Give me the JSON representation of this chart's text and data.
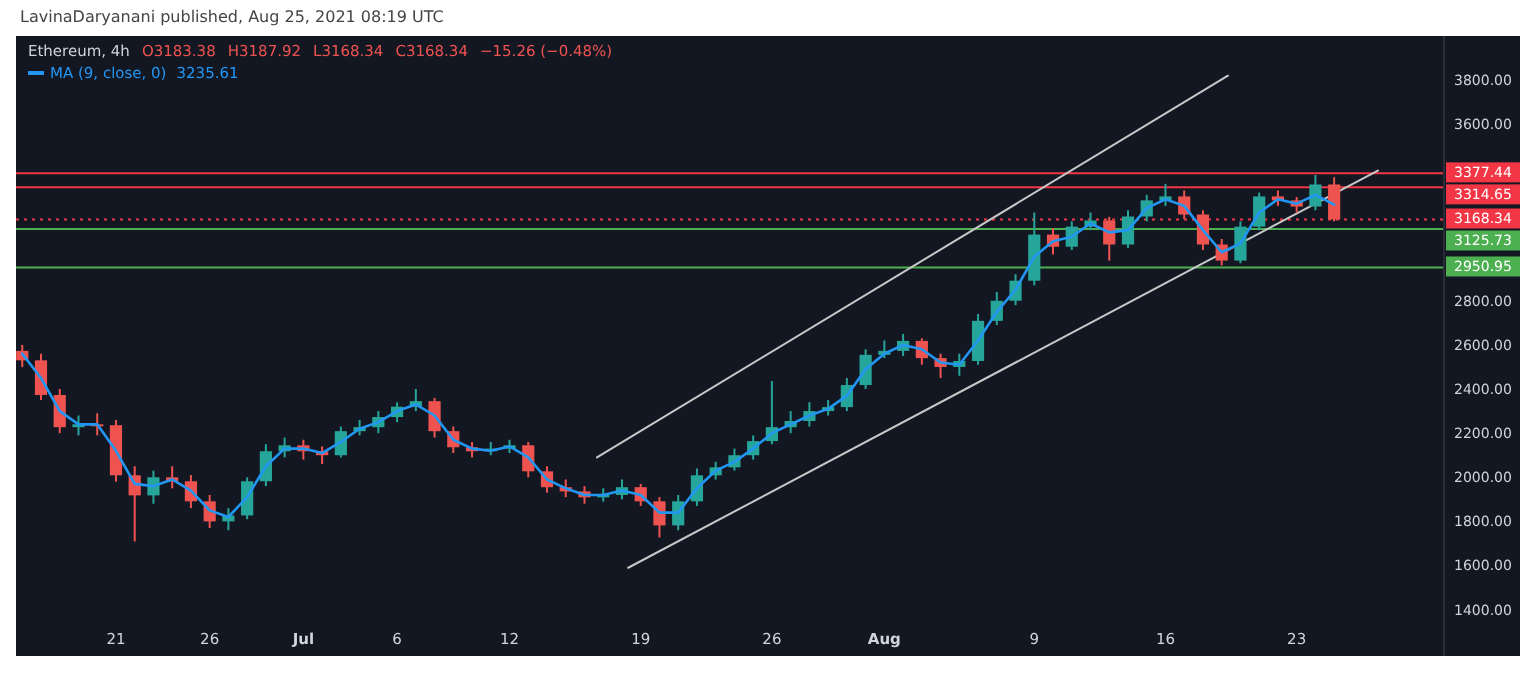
{
  "chart_data": {
    "type": "candlestick",
    "title": "Ethereum, 4h",
    "subtitle": "LavinaDaryanani published, Aug 25, 2021 08:19 UTC",
    "annotations": [
      "O3183.38",
      "H3187.92",
      "L3168.34",
      "C3168.34",
      "−15.26 (−0.48%)",
      "3235.61"
    ],
    "legend": "top left",
    "grid": false,
    "xlim": [
      "2021-06-15T16:00",
      "2021-09-03T22:00"
    ],
    "xticks": [
      {
        "value": "2021-06-21",
        "label": "21"
      },
      {
        "value": "2021-06-26",
        "label": "26"
      },
      {
        "value": "2021-07-01",
        "label": "Jul"
      },
      {
        "value": "2021-07-06",
        "label": "6"
      },
      {
        "value": "2021-07-12",
        "label": "12"
      },
      {
        "value": "2021-07-19",
        "label": "19"
      },
      {
        "value": "2021-07-26",
        "label": "26"
      },
      {
        "value": "2021-08-01",
        "label": "Aug"
      },
      {
        "value": "2021-08-09",
        "label": "9"
      },
      {
        "value": "2021-08-16",
        "label": "16"
      },
      {
        "value": "2021-08-23",
        "label": "23"
      }
    ],
    "ylim": [
      1190,
      4000
    ],
    "yticks": [
      {
        "value": 1400,
        "label": "1400.00"
      },
      {
        "value": 1600,
        "label": "1600.00"
      },
      {
        "value": 1800,
        "label": "1800.00"
      },
      {
        "value": 2000,
        "label": "2000.00"
      },
      {
        "value": 2200,
        "label": "2200.00"
      },
      {
        "value": 2400,
        "label": "2400.00"
      },
      {
        "value": 2600,
        "label": "2600.00"
      },
      {
        "value": 2800,
        "label": "2800.00"
      },
      {
        "value": 3600,
        "label": "3600.00"
      },
      {
        "value": 3800,
        "label": "3800.00"
      }
    ],
    "ref_lines": [
      {
        "axis": "y",
        "value": 3377.44,
        "label": "3377.44",
        "color": "#f23645"
      },
      {
        "axis": "y",
        "value": 3314.65,
        "label": "3314.65",
        "color": "#f23645"
      },
      {
        "axis": "y",
        "value": 3168.34,
        "label": "3168.34",
        "color": "#f23645",
        "line_style": "dotted"
      },
      {
        "axis": "y",
        "value": 3125.73,
        "label": "3125.73",
        "color": "#4caf50"
      },
      {
        "axis": "y",
        "value": 2950.95,
        "label": "2950.95",
        "color": "#4caf50"
      }
    ],
    "x": [
      "2021-06-16",
      "2021-06-17",
      "2021-06-18",
      "2021-06-19",
      "2021-06-20",
      "2021-06-21",
      "2021-06-22",
      "2021-06-23",
      "2021-06-24",
      "2021-06-25",
      "2021-06-26",
      "2021-06-27",
      "2021-06-28",
      "2021-06-29",
      "2021-06-30",
      "2021-07-01",
      "2021-07-02",
      "2021-07-03",
      "2021-07-04",
      "2021-07-05",
      "2021-07-06",
      "2021-07-07",
      "2021-07-08",
      "2021-07-09",
      "2021-07-10",
      "2021-07-11",
      "2021-07-12",
      "2021-07-13",
      "2021-07-14",
      "2021-07-15",
      "2021-07-16",
      "2021-07-17",
      "2021-07-18",
      "2021-07-19",
      "2021-07-20",
      "2021-07-21",
      "2021-07-22",
      "2021-07-23",
      "2021-07-24",
      "2021-07-25",
      "2021-07-26",
      "2021-07-27",
      "2021-07-28",
      "2021-07-29",
      "2021-07-30",
      "2021-07-31",
      "2021-08-01",
      "2021-08-02",
      "2021-08-03",
      "2021-08-04",
      "2021-08-05",
      "2021-08-06",
      "2021-08-07",
      "2021-08-08",
      "2021-08-09",
      "2021-08-10",
      "2021-08-11",
      "2021-08-12",
      "2021-08-13",
      "2021-08-14",
      "2021-08-15",
      "2021-08-16",
      "2021-08-17",
      "2021-08-18",
      "2021-08-19",
      "2021-08-20",
      "2021-08-21",
      "2021-08-22",
      "2021-08-23",
      "2021-08-24",
      "2021-08-25"
    ],
    "ohlc": [
      [
        2573,
        2600,
        2500,
        2530
      ],
      [
        2530,
        2560,
        2350,
        2373
      ],
      [
        2373,
        2400,
        2200,
        2227
      ],
      [
        2227,
        2280,
        2190,
        2240
      ],
      [
        2240,
        2290,
        2190,
        2236
      ],
      [
        2236,
        2260,
        1980,
        2009
      ],
      [
        2009,
        2050,
        1709,
        1918
      ],
      [
        1918,
        2030,
        1880,
        2000
      ],
      [
        2000,
        2050,
        1950,
        1982
      ],
      [
        1982,
        2010,
        1860,
        1891
      ],
      [
        1891,
        1920,
        1770,
        1800
      ],
      [
        1800,
        1860,
        1760,
        1827
      ],
      [
        1827,
        2000,
        1810,
        1982
      ],
      [
        1982,
        2150,
        1960,
        2118
      ],
      [
        2118,
        2180,
        2090,
        2145
      ],
      [
        2145,
        2170,
        2080,
        2118
      ],
      [
        2118,
        2140,
        2060,
        2100
      ],
      [
        2100,
        2230,
        2090,
        2209
      ],
      [
        2209,
        2260,
        2190,
        2227
      ],
      [
        2227,
        2300,
        2200,
        2273
      ],
      [
        2273,
        2340,
        2250,
        2320
      ],
      [
        2320,
        2400,
        2300,
        2345
      ],
      [
        2345,
        2360,
        2180,
        2209
      ],
      [
        2209,
        2230,
        2110,
        2136
      ],
      [
        2136,
        2160,
        2090,
        2118
      ],
      [
        2118,
        2160,
        2100,
        2130
      ],
      [
        2130,
        2170,
        2110,
        2145
      ],
      [
        2145,
        2160,
        2000,
        2027
      ],
      [
        2027,
        2050,
        1930,
        1955
      ],
      [
        1955,
        1990,
        1910,
        1936
      ],
      [
        1936,
        1960,
        1880,
        1909
      ],
      [
        1909,
        1950,
        1890,
        1920
      ],
      [
        1920,
        1990,
        1900,
        1955
      ],
      [
        1955,
        1970,
        1870,
        1891
      ],
      [
        1891,
        1910,
        1727,
        1782
      ],
      [
        1782,
        1920,
        1760,
        1891
      ],
      [
        1891,
        2040,
        1870,
        2009
      ],
      [
        2009,
        2070,
        1990,
        2045
      ],
      [
        2045,
        2130,
        2030,
        2100
      ],
      [
        2100,
        2190,
        2080,
        2164
      ],
      [
        2164,
        2436,
        2150,
        2227
      ],
      [
        2227,
        2300,
        2200,
        2255
      ],
      [
        2255,
        2340,
        2230,
        2300
      ],
      [
        2300,
        2350,
        2280,
        2318
      ],
      [
        2318,
        2450,
        2300,
        2418
      ],
      [
        2418,
        2580,
        2400,
        2555
      ],
      [
        2555,
        2620,
        2540,
        2573
      ],
      [
        2573,
        2650,
        2550,
        2618
      ],
      [
        2618,
        2630,
        2510,
        2540
      ],
      [
        2540,
        2560,
        2450,
        2500
      ],
      [
        2500,
        2560,
        2460,
        2527
      ],
      [
        2527,
        2740,
        2510,
        2709
      ],
      [
        2709,
        2840,
        2690,
        2800
      ],
      [
        2800,
        2920,
        2780,
        2891
      ],
      [
        2891,
        3200,
        2870,
        3100
      ],
      [
        3100,
        3130,
        3010,
        3045
      ],
      [
        3045,
        3160,
        3030,
        3136
      ],
      [
        3136,
        3200,
        3120,
        3164
      ],
      [
        3164,
        3180,
        2982,
        3055
      ],
      [
        3055,
        3210,
        3040,
        3182
      ],
      [
        3182,
        3280,
        3160,
        3255
      ],
      [
        3255,
        3330,
        3230,
        3273
      ],
      [
        3273,
        3300,
        3170,
        3191
      ],
      [
        3191,
        3210,
        3030,
        3055
      ],
      [
        3055,
        3080,
        2960,
        2982
      ],
      [
        2982,
        3160,
        2970,
        3136
      ],
      [
        3136,
        3290,
        3120,
        3273
      ],
      [
        3273,
        3300,
        3230,
        3255
      ],
      [
        3255,
        3270,
        3200,
        3227
      ],
      [
        3227,
        3370,
        3210,
        3327
      ],
      [
        3327,
        3360,
        3160,
        3168.34
      ]
    ],
    "series": [
      {
        "type": "line",
        "name": "MA (9, close, 0)",
        "color": "#2196f3",
        "values": [
          2560,
          2450,
          2300,
          2240,
          2240,
          2120,
          1970,
          1960,
          1990,
          1940,
          1850,
          1820,
          1910,
          2050,
          2130,
          2130,
          2110,
          2160,
          2220,
          2250,
          2300,
          2330,
          2280,
          2170,
          2130,
          2120,
          2140,
          2090,
          1990,
          1950,
          1920,
          1920,
          1940,
          1920,
          1840,
          1840,
          1950,
          2030,
          2070,
          2130,
          2200,
          2240,
          2280,
          2310,
          2370,
          2490,
          2560,
          2600,
          2580,
          2520,
          2510,
          2620,
          2750,
          2850,
          3000,
          3070,
          3090,
          3150,
          3110,
          3120,
          3220,
          3260,
          3230,
          3120,
          3020,
          3060,
          3200,
          3260,
          3240,
          3280,
          3235.61
        ]
      },
      {
        "type": "line",
        "color": "#c8c8c8",
        "x": [
          "2021-07-16T16:00",
          "2021-08-19T08:00"
        ],
        "values": [
          2090,
          3820
        ]
      },
      {
        "type": "line",
        "color": "#c8c8c8",
        "x": [
          "2021-07-18T08:00",
          "2021-08-27T08:00"
        ],
        "values": [
          1590,
          3390
        ]
      }
    ]
  }
}
